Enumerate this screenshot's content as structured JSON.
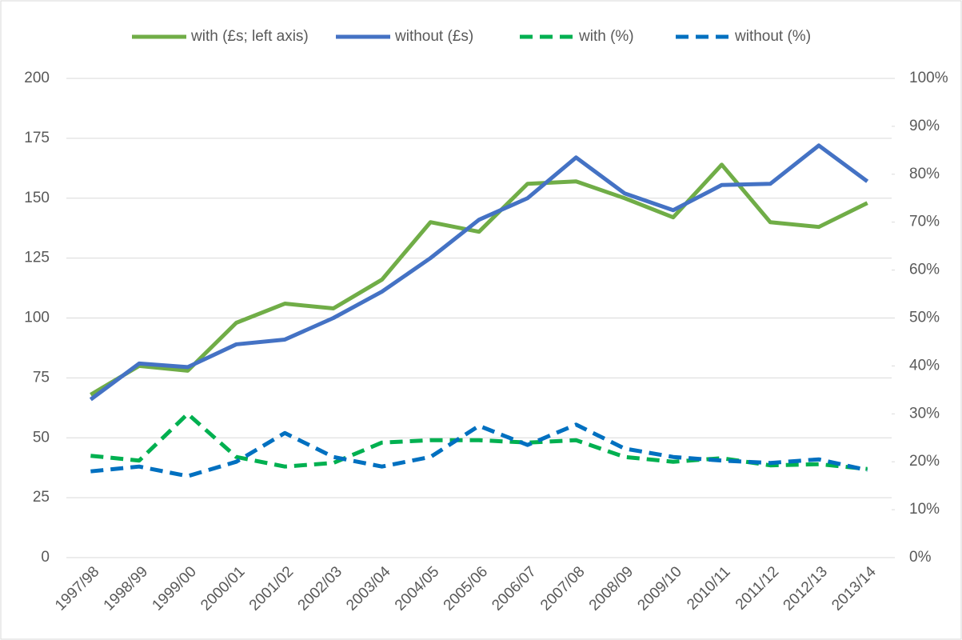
{
  "chart_data": {
    "type": "line",
    "categories": [
      "1997/98",
      "1998/99",
      "1999/00",
      "2000/01",
      "2001/02",
      "2002/03",
      "2003/04",
      "2004/05",
      "2005/06",
      "2006/07",
      "2007/08",
      "2008/09",
      "2009/10",
      "2010/11",
      "2011/12",
      "2012/13",
      "2013/14"
    ],
    "series": [
      {
        "name": "with (£s; left axis)",
        "color": "#70ad47",
        "dash": false,
        "values": [
          68,
          80,
          78,
          98,
          106,
          104,
          116,
          140,
          136,
          156,
          157,
          150,
          142,
          164,
          140,
          138,
          148
        ]
      },
      {
        "name": "without (£s)",
        "color": "#4472c4",
        "dash": false,
        "values": [
          66,
          81,
          79.5,
          89,
          91,
          100,
          111,
          125,
          141,
          150,
          167,
          152,
          145,
          155.5,
          156,
          172,
          157
        ]
      },
      {
        "name": "with (%)",
        "color": "#00b050",
        "dash": true,
        "axis": "y2",
        "values": [
          21.25,
          20.25,
          30,
          21,
          19,
          19.75,
          24,
          24.5,
          24.5,
          24,
          24.5,
          21,
          20,
          20.75,
          19.25,
          19.5,
          18.5
        ]
      },
      {
        "name": "without (%)",
        "color": "#0070c0",
        "dash": true,
        "axis": "y2",
        "values": [
          18,
          19,
          17,
          20,
          26,
          21,
          19,
          21,
          27.5,
          23.5,
          27.75,
          22.75,
          21,
          20.25,
          19.75,
          20.5,
          18.25
        ]
      }
    ],
    "ylim": [
      0,
      200
    ],
    "yticks": [
      0,
      25,
      50,
      75,
      100,
      125,
      150,
      175,
      200
    ],
    "y2lim": [
      0,
      100
    ],
    "y2ticks": [
      {
        "value": 0,
        "label": "0%"
      },
      {
        "value": 10,
        "label": "10%"
      },
      {
        "value": 20,
        "label": "20%"
      },
      {
        "value": 30,
        "label": "30%"
      },
      {
        "value": 40,
        "label": "40%"
      },
      {
        "value": 50,
        "label": "50%"
      },
      {
        "value": 60,
        "label": "60%"
      },
      {
        "value": 70,
        "label": "70%"
      },
      {
        "value": 80,
        "label": "80%"
      },
      {
        "value": 90,
        "label": "90%"
      },
      {
        "value": 100,
        "label": "100%"
      }
    ],
    "grid": true,
    "legend": "top"
  }
}
